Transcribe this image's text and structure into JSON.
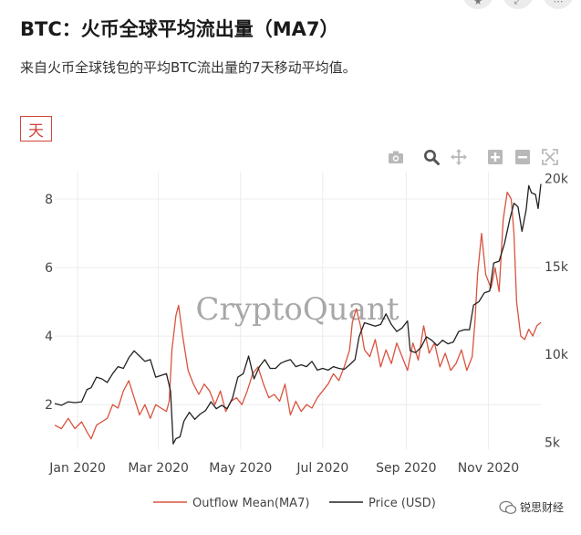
{
  "header": {
    "title": "BTC：火币全球平均流出量（MA7）",
    "description": "来自火币全球钱包的平均BTC流出量的7天移动平均值。"
  },
  "period_button": {
    "label": "天"
  },
  "modebar": {
    "icons": [
      "camera-icon",
      "zoom-icon",
      "pan-icon",
      "zoom-in-icon",
      "zoom-out-icon",
      "autoscale-icon"
    ]
  },
  "watermark": "CryptoQuant",
  "brand": {
    "name": "锐思财经"
  },
  "chart_data": {
    "type": "line",
    "xlabel": "",
    "ylabel_left": "",
    "ylabel_right": "",
    "x_range": [
      "2019-12-15",
      "2020-12-10"
    ],
    "y_left": {
      "range": [
        0.7,
        8.8
      ],
      "ticks": [
        2,
        4,
        6,
        8
      ],
      "tick_labels": [
        "2",
        "4",
        "6",
        "8"
      ]
    },
    "y_right": {
      "range": [
        4600,
        20400
      ],
      "ticks": [
        5000,
        10000,
        15000,
        20000
      ],
      "tick_labels": [
        "5k",
        "10k",
        "15k",
        "20k"
      ]
    },
    "x_ticks": [
      {
        "date": "2020-01-01",
        "label": "Jan 2020"
      },
      {
        "date": "2020-03-01",
        "label": "Mar 2020"
      },
      {
        "date": "2020-05-01",
        "label": "May 2020"
      },
      {
        "date": "2020-07-01",
        "label": "Jul 2020"
      },
      {
        "date": "2020-09-01",
        "label": "Sep 2020"
      },
      {
        "date": "2020-11-01",
        "label": "Nov 2020"
      }
    ],
    "grid": true,
    "legend_position": "bottom-center",
    "series": [
      {
        "name": "Outflow Mean(MA7)",
        "axis": "left",
        "color": "#d9533f",
        "points": [
          [
            "2019-12-15",
            1.4
          ],
          [
            "2019-12-20",
            1.3
          ],
          [
            "2019-12-25",
            1.6
          ],
          [
            "2019-12-30",
            1.3
          ],
          [
            "2020-01-04",
            1.5
          ],
          [
            "2020-01-08",
            1.2
          ],
          [
            "2020-01-11",
            1.0
          ],
          [
            "2020-01-15",
            1.4
          ],
          [
            "2020-01-19",
            1.5
          ],
          [
            "2020-01-23",
            1.6
          ],
          [
            "2020-01-27",
            2.0
          ],
          [
            "2020-01-31",
            1.9
          ],
          [
            "2020-02-04",
            2.4
          ],
          [
            "2020-02-08",
            2.7
          ],
          [
            "2020-02-12",
            2.2
          ],
          [
            "2020-02-16",
            1.7
          ],
          [
            "2020-02-20",
            2.0
          ],
          [
            "2020-02-24",
            1.6
          ],
          [
            "2020-02-28",
            2.0
          ],
          [
            "2020-03-03",
            1.9
          ],
          [
            "2020-03-07",
            1.8
          ],
          [
            "2020-03-09",
            2.1
          ],
          [
            "2020-03-11",
            3.6
          ],
          [
            "2020-03-14",
            4.6
          ],
          [
            "2020-03-16",
            4.9
          ],
          [
            "2020-03-19",
            4.0
          ],
          [
            "2020-03-23",
            3.0
          ],
          [
            "2020-03-27",
            2.6
          ],
          [
            "2020-03-31",
            2.3
          ],
          [
            "2020-04-04",
            2.6
          ],
          [
            "2020-04-08",
            2.4
          ],
          [
            "2020-04-12",
            2.0
          ],
          [
            "2020-04-16",
            2.4
          ],
          [
            "2020-04-20",
            1.8
          ],
          [
            "2020-04-24",
            2.1
          ],
          [
            "2020-04-28",
            2.2
          ],
          [
            "2020-05-02",
            2.0
          ],
          [
            "2020-05-06",
            2.4
          ],
          [
            "2020-05-10",
            2.9
          ],
          [
            "2020-05-14",
            3.1
          ],
          [
            "2020-05-18",
            2.6
          ],
          [
            "2020-05-22",
            2.2
          ],
          [
            "2020-05-26",
            2.3
          ],
          [
            "2020-05-30",
            2.1
          ],
          [
            "2020-06-03",
            2.6
          ],
          [
            "2020-06-07",
            1.7
          ],
          [
            "2020-06-11",
            2.1
          ],
          [
            "2020-06-15",
            1.8
          ],
          [
            "2020-06-19",
            2.0
          ],
          [
            "2020-06-23",
            1.9
          ],
          [
            "2020-06-27",
            2.2
          ],
          [
            "2020-07-01",
            2.4
          ],
          [
            "2020-07-05",
            2.6
          ],
          [
            "2020-07-09",
            2.9
          ],
          [
            "2020-07-13",
            2.7
          ],
          [
            "2020-07-17",
            3.1
          ],
          [
            "2020-07-21",
            3.6
          ],
          [
            "2020-07-23",
            4.4
          ],
          [
            "2020-07-26",
            4.8
          ],
          [
            "2020-07-29",
            4.3
          ],
          [
            "2020-08-01",
            3.6
          ],
          [
            "2020-08-05",
            3.4
          ],
          [
            "2020-08-09",
            3.9
          ],
          [
            "2020-08-13",
            3.1
          ],
          [
            "2020-08-17",
            3.6
          ],
          [
            "2020-08-21",
            3.2
          ],
          [
            "2020-08-25",
            3.8
          ],
          [
            "2020-08-29",
            3.4
          ],
          [
            "2020-09-02",
            3.0
          ],
          [
            "2020-09-06",
            3.8
          ],
          [
            "2020-09-10",
            3.3
          ],
          [
            "2020-09-14",
            4.3
          ],
          [
            "2020-09-18",
            3.5
          ],
          [
            "2020-09-22",
            3.8
          ],
          [
            "2020-09-26",
            3.1
          ],
          [
            "2020-09-30",
            3.5
          ],
          [
            "2020-10-04",
            3.0
          ],
          [
            "2020-10-08",
            3.2
          ],
          [
            "2020-10-12",
            3.6
          ],
          [
            "2020-10-16",
            3.0
          ],
          [
            "2020-10-20",
            3.4
          ],
          [
            "2020-10-22",
            4.4
          ],
          [
            "2020-10-24",
            5.8
          ],
          [
            "2020-10-27",
            7.0
          ],
          [
            "2020-10-30",
            5.8
          ],
          [
            "2020-11-03",
            5.4
          ],
          [
            "2020-11-06",
            6.0
          ],
          [
            "2020-11-09",
            5.3
          ],
          [
            "2020-11-12",
            7.4
          ],
          [
            "2020-11-15",
            8.2
          ],
          [
            "2020-11-18",
            8.0
          ],
          [
            "2020-11-20",
            7.0
          ],
          [
            "2020-11-22",
            5.0
          ],
          [
            "2020-11-25",
            4.0
          ],
          [
            "2020-11-28",
            3.9
          ],
          [
            "2020-12-01",
            4.2
          ],
          [
            "2020-12-04",
            4.0
          ],
          [
            "2020-12-07",
            4.3
          ],
          [
            "2020-12-10",
            4.4
          ]
        ]
      },
      {
        "name": "Price (USD)",
        "axis": "right",
        "color": "#222222",
        "points": [
          [
            "2019-12-15",
            7200
          ],
          [
            "2019-12-20",
            7100
          ],
          [
            "2019-12-25",
            7300
          ],
          [
            "2019-12-30",
            7250
          ],
          [
            "2020-01-04",
            7300
          ],
          [
            "2020-01-08",
            8000
          ],
          [
            "2020-01-11",
            8100
          ],
          [
            "2020-01-15",
            8700
          ],
          [
            "2020-01-19",
            8600
          ],
          [
            "2020-01-23",
            8400
          ],
          [
            "2020-01-27",
            8900
          ],
          [
            "2020-01-31",
            9300
          ],
          [
            "2020-02-04",
            9200
          ],
          [
            "2020-02-08",
            9800
          ],
          [
            "2020-02-12",
            10200
          ],
          [
            "2020-02-16",
            9900
          ],
          [
            "2020-02-20",
            9600
          ],
          [
            "2020-02-24",
            9700
          ],
          [
            "2020-02-28",
            8700
          ],
          [
            "2020-03-03",
            8800
          ],
          [
            "2020-03-07",
            8900
          ],
          [
            "2020-03-10",
            7900
          ],
          [
            "2020-03-12",
            4900
          ],
          [
            "2020-03-14",
            5200
          ],
          [
            "2020-03-17",
            5300
          ],
          [
            "2020-03-20",
            6200
          ],
          [
            "2020-03-24",
            6700
          ],
          [
            "2020-03-28",
            6300
          ],
          [
            "2020-04-01",
            6600
          ],
          [
            "2020-04-05",
            6800
          ],
          [
            "2020-04-09",
            7300
          ],
          [
            "2020-04-13",
            6900
          ],
          [
            "2020-04-17",
            7100
          ],
          [
            "2020-04-21",
            6900
          ],
          [
            "2020-04-25",
            7500
          ],
          [
            "2020-04-29",
            8700
          ],
          [
            "2020-05-03",
            8900
          ],
          [
            "2020-05-07",
            9900
          ],
          [
            "2020-05-11",
            8600
          ],
          [
            "2020-05-15",
            9300
          ],
          [
            "2020-05-19",
            9700
          ],
          [
            "2020-05-23",
            9200
          ],
          [
            "2020-05-27",
            9200
          ],
          [
            "2020-05-31",
            9500
          ],
          [
            "2020-06-03",
            9600
          ],
          [
            "2020-06-07",
            9700
          ],
          [
            "2020-06-11",
            9300
          ],
          [
            "2020-06-15",
            9400
          ],
          [
            "2020-06-19",
            9300
          ],
          [
            "2020-06-23",
            9600
          ],
          [
            "2020-06-27",
            9100
          ],
          [
            "2020-07-01",
            9200
          ],
          [
            "2020-07-05",
            9100
          ],
          [
            "2020-07-09",
            9300
          ],
          [
            "2020-07-13",
            9200
          ],
          [
            "2020-07-17",
            9150
          ],
          [
            "2020-07-21",
            9400
          ],
          [
            "2020-07-25",
            9700
          ],
          [
            "2020-07-28",
            11000
          ],
          [
            "2020-08-01",
            11800
          ],
          [
            "2020-08-05",
            11700
          ],
          [
            "2020-08-09",
            11600
          ],
          [
            "2020-08-13",
            11700
          ],
          [
            "2020-08-17",
            12300
          ],
          [
            "2020-08-21",
            11700
          ],
          [
            "2020-08-25",
            11300
          ],
          [
            "2020-08-29",
            11500
          ],
          [
            "2020-09-02",
            11900
          ],
          [
            "2020-09-04",
            10200
          ],
          [
            "2020-09-08",
            10100
          ],
          [
            "2020-09-12",
            10400
          ],
          [
            "2020-09-16",
            11000
          ],
          [
            "2020-09-20",
            10800
          ],
          [
            "2020-09-24",
            10500
          ],
          [
            "2020-09-28",
            10800
          ],
          [
            "2020-10-02",
            10600
          ],
          [
            "2020-10-06",
            10700
          ],
          [
            "2020-10-10",
            11300
          ],
          [
            "2020-10-14",
            11400
          ],
          [
            "2020-10-18",
            11400
          ],
          [
            "2020-10-21",
            12800
          ],
          [
            "2020-10-25",
            13000
          ],
          [
            "2020-10-29",
            13500
          ],
          [
            "2020-11-02",
            13600
          ],
          [
            "2020-11-05",
            15200
          ],
          [
            "2020-11-09",
            15300
          ],
          [
            "2020-11-13",
            16300
          ],
          [
            "2020-11-17",
            17700
          ],
          [
            "2020-11-20",
            18600
          ],
          [
            "2020-11-23",
            18400
          ],
          [
            "2020-11-26",
            17000
          ],
          [
            "2020-11-29",
            18200
          ],
          [
            "2020-12-01",
            19600
          ],
          [
            "2020-12-03",
            19200
          ],
          [
            "2020-12-06",
            19100
          ],
          [
            "2020-12-08",
            18300
          ],
          [
            "2020-12-10",
            19700
          ]
        ]
      }
    ]
  }
}
